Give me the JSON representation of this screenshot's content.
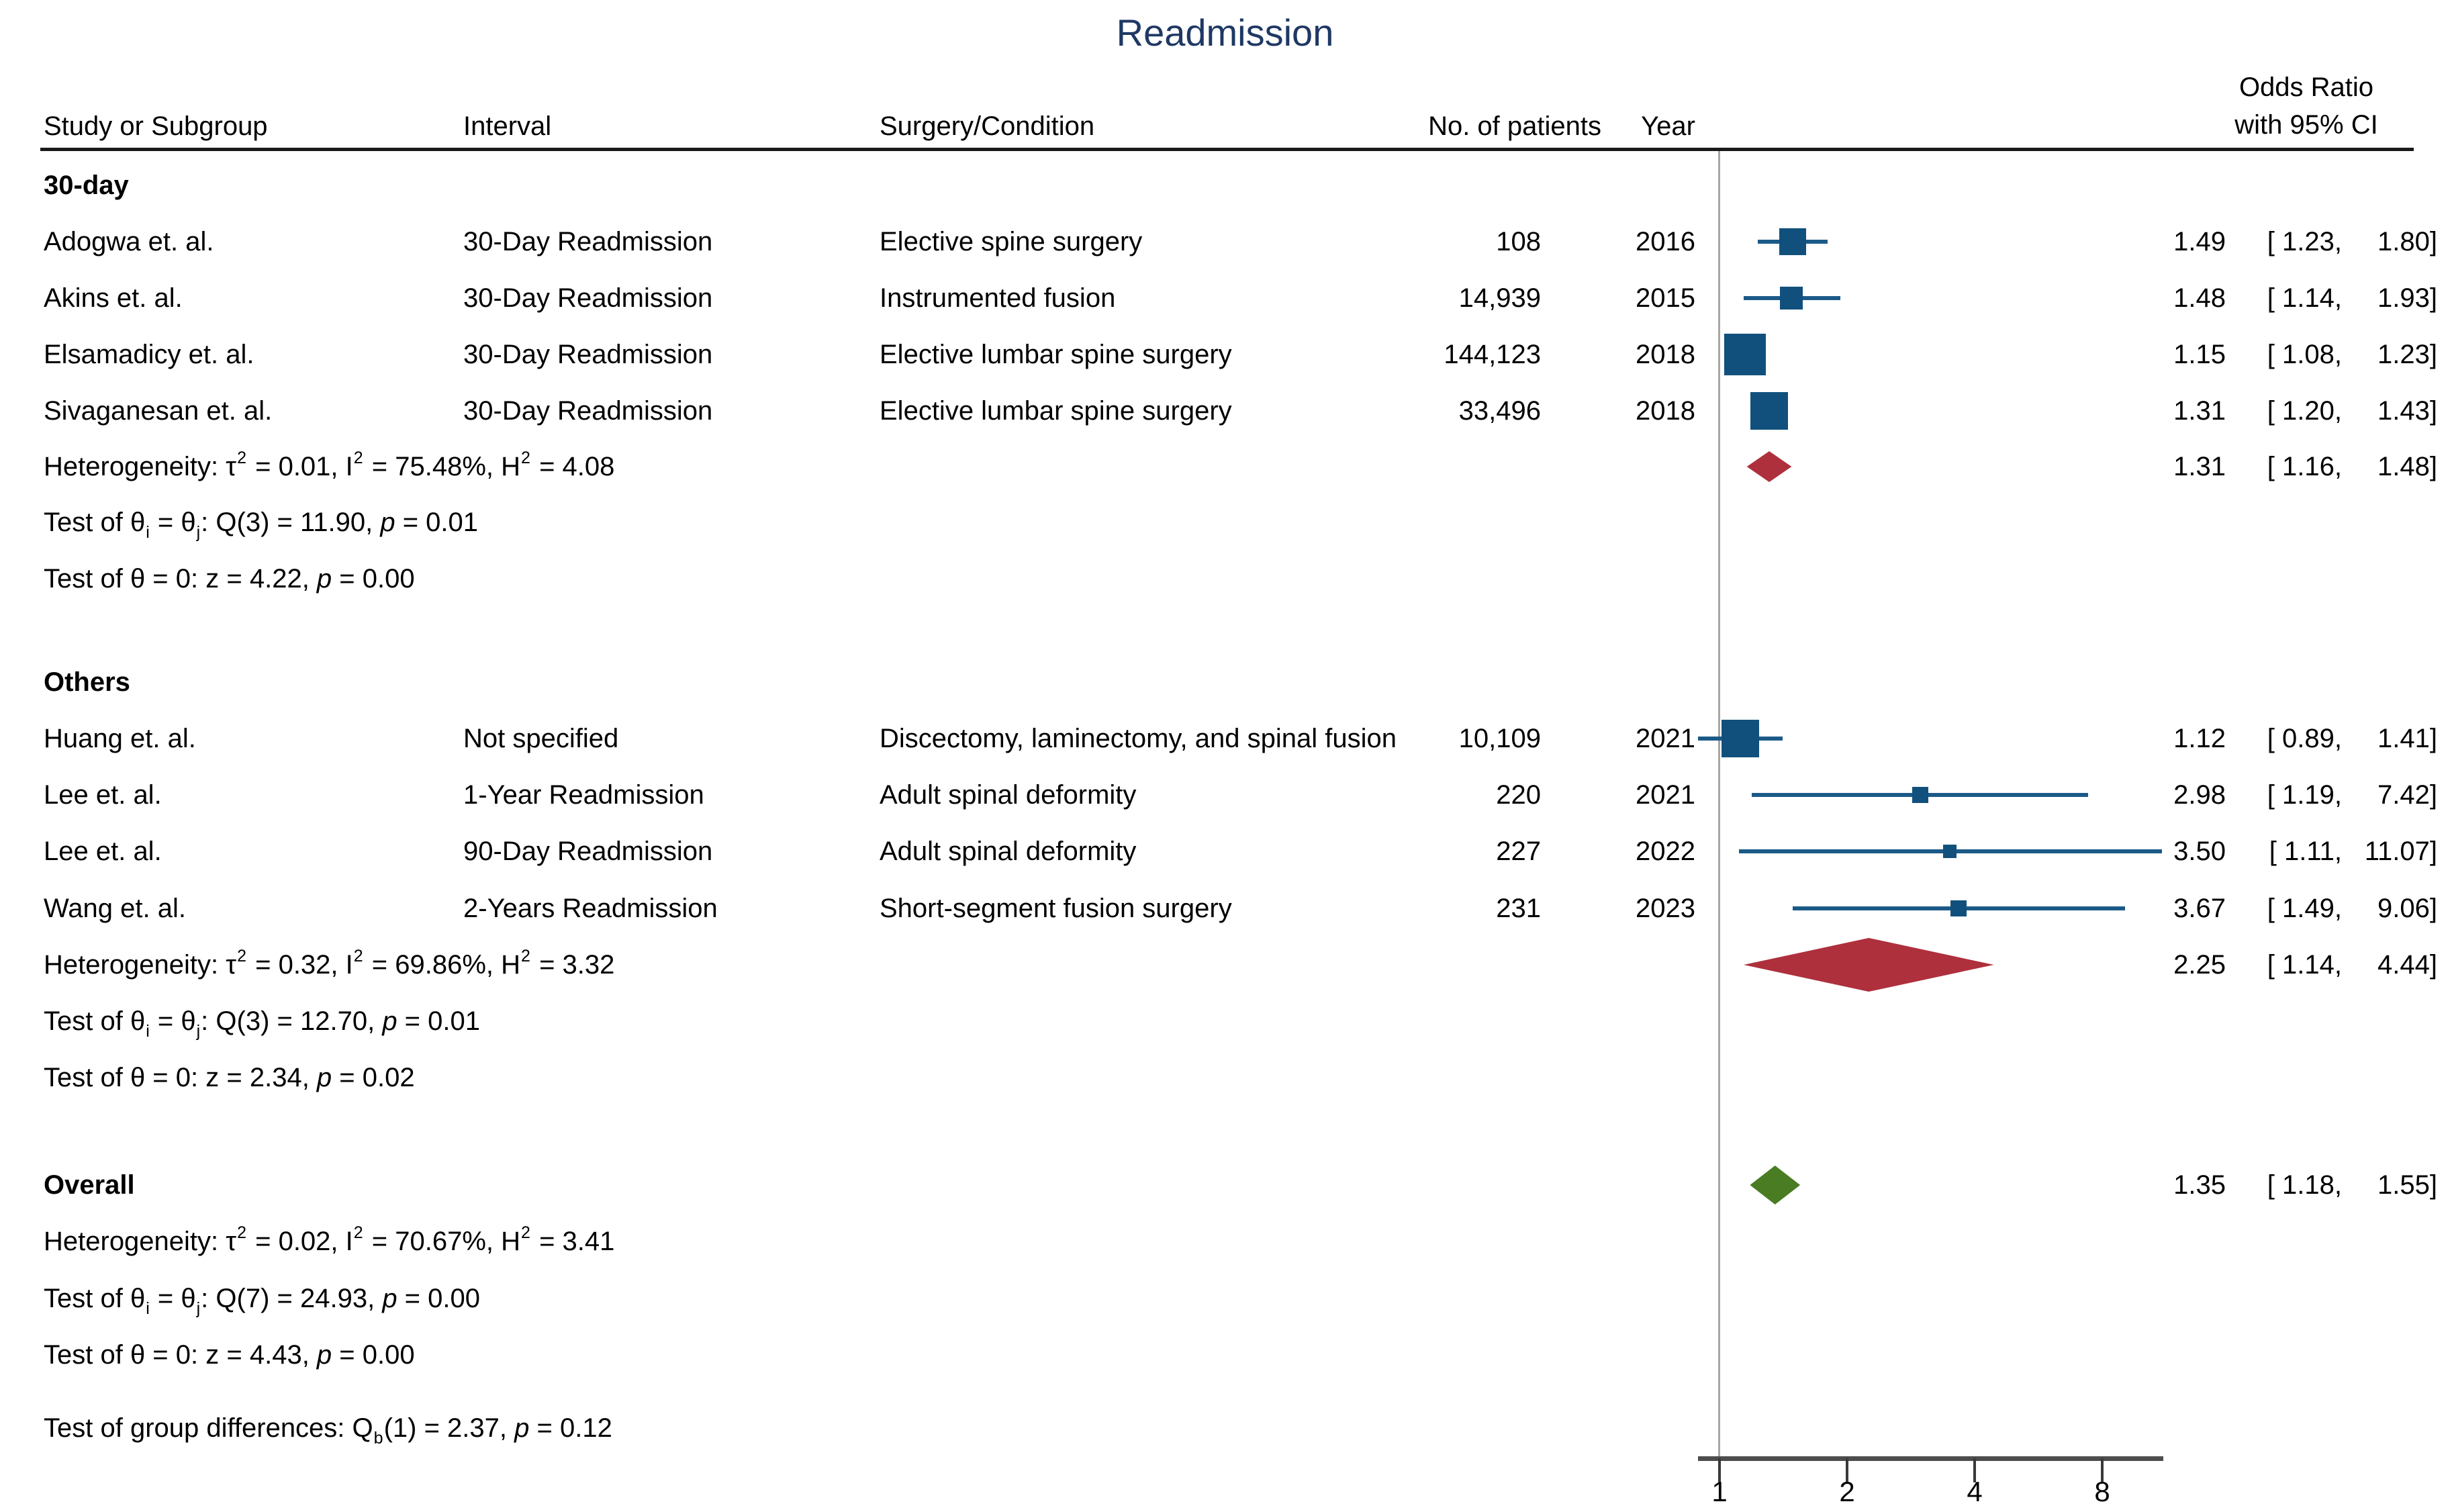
{
  "header": {
    "study": "Study or Subgroup",
    "interval": "Interval",
    "surgery": "Surgery/Condition",
    "patients": "No. of patients",
    "year": "Year",
    "or_line1": "Odds Ratio",
    "or_line2": "with 95% CI"
  },
  "colors": {
    "title": "#1f3864",
    "marker": "#11507c",
    "ci_line": "#1b5a88",
    "subgroup_diamond": "#ae303c",
    "overall_diamond": "#4a7c23",
    "ref_line": "#a6a6a6",
    "axis_line": "#4d4d4d",
    "tick": "#3a3a3a",
    "rule": "#1a1a1a",
    "text": "#000000"
  },
  "chart_data": {
    "type": "scatter",
    "subtype": "forest-plot",
    "title": "Readmission",
    "effect_measure": "Odds Ratio",
    "x_axis": {
      "scale": "log2",
      "ticks": [
        1,
        2,
        4,
        8
      ],
      "range": [
        0.89,
        11.07
      ],
      "ref_value": 1
    },
    "groups": [
      {
        "label": "30-day",
        "studies": [
          {
            "study": "Adogwa et. al.",
            "interval": "30-Day Readmission",
            "surgery": "Elective spine surgery",
            "patients": "108",
            "year": "2016",
            "or": 1.49,
            "ci_low": 1.23,
            "ci_high": 1.8,
            "or_parts": [
              "1.49",
              "[ 1.23,",
              "1.80]"
            ],
            "marker_size": 40
          },
          {
            "study": "Akins et. al.",
            "interval": "30-Day Readmission",
            "surgery": "Instrumented fusion",
            "patients": "14,939",
            "year": "2015",
            "or": 1.48,
            "ci_low": 1.14,
            "ci_high": 1.93,
            "or_parts": [
              "1.48",
              "[ 1.14,",
              "1.93]"
            ],
            "marker_size": 34
          },
          {
            "study": "Elsamadicy et. al.",
            "interval": "30-Day Readmission",
            "surgery": "Elective lumbar spine surgery",
            "patients": "144,123",
            "year": "2018",
            "or": 1.15,
            "ci_low": 1.08,
            "ci_high": 1.23,
            "or_parts": [
              "1.15",
              "[ 1.08,",
              "1.23]"
            ],
            "marker_size": 62
          },
          {
            "study": "Sivaganesan et. al.",
            "interval": "30-Day Readmission",
            "surgery": "Elective lumbar spine surgery",
            "patients": "33,496",
            "year": "2018",
            "or": 1.31,
            "ci_low": 1.2,
            "ci_high": 1.43,
            "or_parts": [
              "1.31",
              "[ 1.20,",
              "1.43]"
            ],
            "marker_size": 56
          }
        ],
        "summary": {
          "or": 1.31,
          "ci_low": 1.16,
          "ci_high": 1.48,
          "or_parts": [
            "1.31",
            "[ 1.16,",
            "1.48]"
          ],
          "height": 46
        },
        "stats": [
          [
            [
              "t",
              "Heterogeneity: τ"
            ],
            [
              "sup",
              "2"
            ],
            [
              "t",
              " = 0.01, I"
            ],
            [
              "sup",
              "2"
            ],
            [
              "t",
              " = 75.48%, H"
            ],
            [
              "sup",
              "2"
            ],
            [
              "t",
              " = 4.08"
            ]
          ],
          [
            [
              "t",
              "Test of θ"
            ],
            [
              "sub",
              "i"
            ],
            [
              "t",
              " = θ"
            ],
            [
              "sub",
              "j"
            ],
            [
              "t",
              ": Q(3) = 11.90, "
            ],
            [
              "i",
              "p"
            ],
            [
              "t",
              " = 0.01"
            ]
          ],
          [
            [
              "t",
              "Test of θ = 0: z = 4.22, "
            ],
            [
              "i",
              "p"
            ],
            [
              "t",
              " = 0.00"
            ]
          ]
        ]
      },
      {
        "label": "Others",
        "studies": [
          {
            "study": "Huang et. al.",
            "interval": "Not specified",
            "surgery": "Discectomy, laminectomy, and spinal fusion",
            "patients": "10,109",
            "year": "2021",
            "or": 1.12,
            "ci_low": 0.89,
            "ci_high": 1.41,
            "or_parts": [
              "1.12",
              "[ 0.89,",
              "1.41]"
            ],
            "marker_size": 56
          },
          {
            "study": "Lee et. al.",
            "interval": "1-Year Readmission",
            "surgery": "Adult spinal deformity",
            "patients": "220",
            "year": "2021",
            "or": 2.98,
            "ci_low": 1.19,
            "ci_high": 7.42,
            "or_parts": [
              "2.98",
              "[ 1.19,",
              "7.42]"
            ],
            "marker_size": 24
          },
          {
            "study": "Lee et. al.",
            "interval": "90-Day Readmission",
            "surgery": "Adult spinal deformity",
            "patients": "227",
            "year": "2022",
            "or": 3.5,
            "ci_low": 1.11,
            "ci_high": 11.07,
            "or_parts": [
              "3.50",
              "[ 1.11,",
              "11.07]"
            ],
            "marker_size": 20
          },
          {
            "study": "Wang et. al.",
            "interval": "2-Years Readmission",
            "surgery": "Short-segment fusion surgery",
            "patients": "231",
            "year": "2023",
            "or": 3.67,
            "ci_low": 1.49,
            "ci_high": 9.06,
            "or_parts": [
              "3.67",
              "[ 1.49,",
              "9.06]"
            ],
            "marker_size": 24
          }
        ],
        "summary": {
          "or": 2.25,
          "ci_low": 1.14,
          "ci_high": 4.44,
          "or_parts": [
            "2.25",
            "[ 1.14,",
            "4.44]"
          ],
          "height": 80
        },
        "stats": [
          [
            [
              "t",
              "Heterogeneity: τ"
            ],
            [
              "sup",
              "2"
            ],
            [
              "t",
              " = 0.32, I"
            ],
            [
              "sup",
              "2"
            ],
            [
              "t",
              " = 69.86%, H"
            ],
            [
              "sup",
              "2"
            ],
            [
              "t",
              " = 3.32"
            ]
          ],
          [
            [
              "t",
              "Test of θ"
            ],
            [
              "sub",
              "i"
            ],
            [
              "t",
              " = θ"
            ],
            [
              "sub",
              "j"
            ],
            [
              "t",
              ": Q(3) = 12.70, "
            ],
            [
              "i",
              "p"
            ],
            [
              "t",
              " = 0.01"
            ]
          ],
          [
            [
              "t",
              "Test of θ = 0: z = 2.34, "
            ],
            [
              "i",
              "p"
            ],
            [
              "t",
              " = 0.02"
            ]
          ]
        ]
      }
    ],
    "overall": {
      "label": "Overall",
      "summary": {
        "or": 1.35,
        "ci_low": 1.18,
        "ci_high": 1.55,
        "or_parts": [
          "1.35",
          "[ 1.18,",
          "1.55]"
        ],
        "height": 58
      },
      "stats": [
        [
          [
            "t",
            "Heterogeneity: τ"
          ],
          [
            "sup",
            "2"
          ],
          [
            "t",
            " = 0.02, I"
          ],
          [
            "sup",
            "2"
          ],
          [
            "t",
            " = 70.67%, H"
          ],
          [
            "sup",
            "2"
          ],
          [
            "t",
            " = 3.41"
          ]
        ],
        [
          [
            "t",
            "Test of θ"
          ],
          [
            "sub",
            "i"
          ],
          [
            "t",
            " = θ"
          ],
          [
            "sub",
            "j"
          ],
          [
            "t",
            ": Q(7) = 24.93, "
          ],
          [
            "i",
            "p"
          ],
          [
            "t",
            " = 0.00"
          ]
        ],
        [
          [
            "t",
            "Test of θ = 0: z = 4.43, "
          ],
          [
            "i",
            "p"
          ],
          [
            "t",
            " = 0.00"
          ]
        ]
      ]
    },
    "group_difference": [
      [
        "t",
        "Test of group differences: Q"
      ],
      [
        "sub",
        "b"
      ],
      [
        "t",
        "(1) = 2.37, "
      ],
      [
        "i",
        "p"
      ],
      [
        "t",
        " = 0.12"
      ]
    ]
  }
}
